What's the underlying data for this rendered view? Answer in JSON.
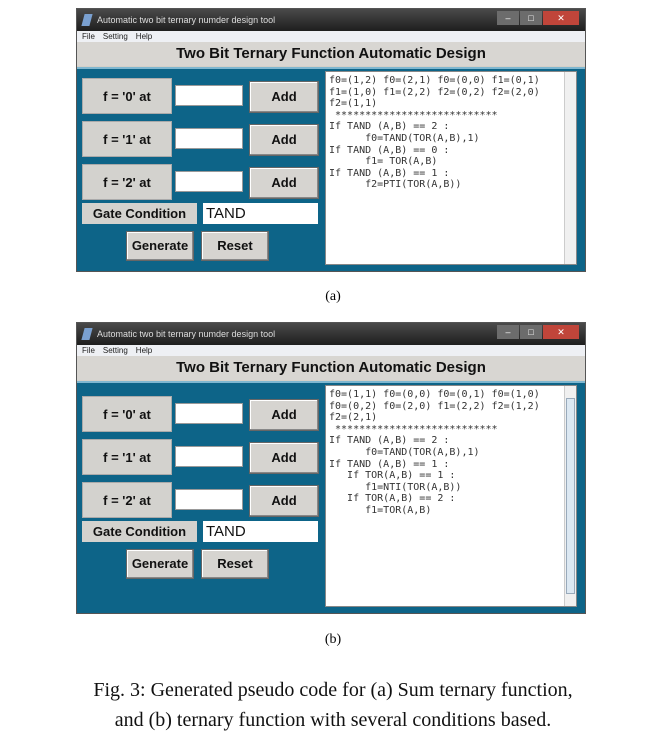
{
  "windows": [
    {
      "title": "Automatic two bit ternary numder design tool",
      "menu": [
        "File",
        "Setting",
        "Help"
      ],
      "heading": "Two Bit Ternary Function Automatic Design",
      "rows": [
        "f = '0' at",
        "f = '1' at",
        "f = '2' at"
      ],
      "add_label": "Add",
      "gate_label": "Gate Condition",
      "gate_value": "TAND",
      "generate_label": "Generate",
      "reset_label": "Reset",
      "output": "f0=(1,2) f0=(2,1) f0=(0,0) f1=(0,1)\nf1=(1,0) f1=(2,2) f2=(0,2) f2=(2,0)\nf2=(1,1)\n ***************************\nIf TAND (A,B) == 2 :\n      f0=TAND(TOR(A,B),1)\nIf TAND (A,B) == 0 :\n      f1= TOR(A,B)\nIf TAND (A,B) == 1 :\n      f2=PTI(TOR(A,B))",
      "caption": "(a)"
    },
    {
      "title": "Automatic two bit ternary numder design tool",
      "menu": [
        "File",
        "Setting",
        "Help"
      ],
      "heading": "Two Bit Ternary Function Automatic Design",
      "rows": [
        "f = '0' at",
        "f = '1' at",
        "f = '2' at"
      ],
      "add_label": "Add",
      "gate_label": "Gate Condition",
      "gate_value": "TAND",
      "generate_label": "Generate",
      "reset_label": "Reset",
      "output": "f0=(1,1) f0=(0,0) f0=(0,1) f0=(1,0)\nf0=(0,2) f0=(2,0) f1=(2,2) f2=(1,2)\nf2=(2,1)\n ***************************\nIf TAND (A,B) == 2 :\n      f0=TAND(TOR(A,B),1)\nIf TAND (A,B) == 1 :\n   If TOR(A,B) == 1 :\n      f1=NTI(TOR(A,B))\n   If TOR(A,B) == 2 :\n      f1=TOR(A,B)",
      "caption": "(b)"
    }
  ],
  "figure_caption": [
    "Fig. 3: Generated pseudo code for (a) Sum ternary function,",
    "and (b) ternary function with several conditions based."
  ]
}
